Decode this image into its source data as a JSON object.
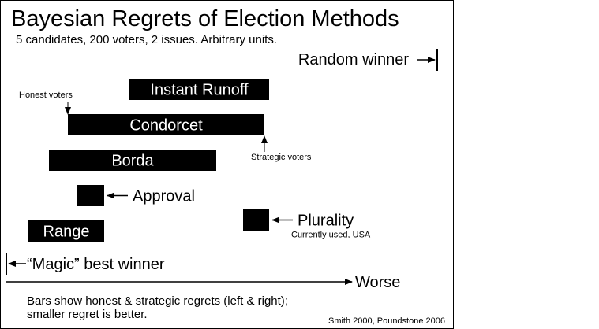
{
  "chart_data": {
    "type": "bar",
    "title": "Bayesian Regrets of Election Methods",
    "subtitle": "5 candidates, 200 voters, 2 issues.  Arbitrary units.",
    "x_axis_label": "Worse",
    "footnote_lines": [
      "Bars show honest & strategic regrets (left & right);",
      "smaller regret is better."
    ],
    "credit": "Smith 2000,  Poundstone 2006",
    "reference_lines": {
      "best": {
        "label": "“Magic” best winner",
        "value": 0
      },
      "random": {
        "label": "Random winner",
        "value": 546
      }
    },
    "methods": [
      {
        "name": "Instant Runoff",
        "honest": 156,
        "strategic": 333,
        "label_position": "inside"
      },
      {
        "name": "Condorcet",
        "honest": 78,
        "strategic": 327,
        "label_position": "inside"
      },
      {
        "name": "Borda",
        "honest": 54,
        "strategic": 266,
        "label_position": "inside"
      },
      {
        "name": "Approval",
        "honest": 90,
        "strategic": 124,
        "label_position": "right"
      },
      {
        "name": "Plurality",
        "honest": 300,
        "strategic": 333,
        "label_position": "right",
        "note": "Currently used, USA"
      },
      {
        "name": "Range",
        "honest": 28,
        "strategic": 124,
        "label_position": "inside"
      }
    ],
    "annotations": [
      {
        "text": "Honest voters",
        "method": "Condorcet",
        "end": "honest"
      },
      {
        "text": "Strategic voters",
        "method": "Condorcet",
        "end": "strategic"
      }
    ],
    "colors": {
      "bar": "#000000",
      "bar_text": "#ffffff",
      "text": "#000000",
      "background": "#ffffff"
    },
    "grid": false,
    "legend": "none"
  }
}
